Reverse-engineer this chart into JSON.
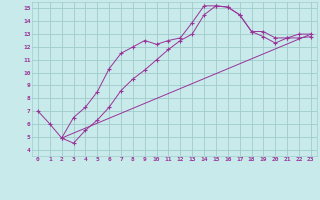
{
  "background_color": "#c8eaea",
  "grid_color": "#a0cccc",
  "line_color": "#993399",
  "xlabel_bg": "#660066",
  "xlabel_fg": "#ffffff",
  "xlim": [
    -0.5,
    23.5
  ],
  "ylim": [
    3.5,
    15.5
  ],
  "yticks": [
    4,
    5,
    6,
    7,
    8,
    9,
    10,
    11,
    12,
    13,
    14,
    15
  ],
  "xticks": [
    0,
    1,
    2,
    3,
    4,
    5,
    6,
    7,
    8,
    9,
    10,
    11,
    12,
    13,
    14,
    15,
    16,
    17,
    18,
    19,
    20,
    21,
    22,
    23
  ],
  "series1_x": [
    0,
    1,
    2,
    3,
    4,
    5,
    6,
    7,
    8,
    9,
    10,
    11,
    12,
    13,
    14,
    15,
    16,
    17,
    18,
    19,
    20,
    21,
    22,
    23
  ],
  "series1_y": [
    7.0,
    6.0,
    4.9,
    6.5,
    7.3,
    8.5,
    10.3,
    11.5,
    12.0,
    12.5,
    12.2,
    12.5,
    12.7,
    13.9,
    15.2,
    15.2,
    15.1,
    14.5,
    13.2,
    13.2,
    12.7,
    12.7,
    13.0,
    13.0
  ],
  "series2_x": [
    2,
    3,
    4,
    5,
    6,
    7,
    8,
    9,
    10,
    11,
    12,
    13,
    14,
    15,
    16,
    17,
    18,
    19,
    20,
    21,
    22,
    23
  ],
  "series2_y": [
    4.9,
    4.5,
    5.5,
    6.3,
    7.3,
    8.6,
    9.5,
    10.2,
    11.0,
    11.8,
    12.5,
    13.0,
    14.5,
    15.2,
    15.1,
    14.5,
    13.2,
    12.8,
    12.3,
    12.7,
    12.7,
    12.8
  ],
  "series3_x": [
    2,
    23
  ],
  "series3_y": [
    4.9,
    13.0
  ]
}
